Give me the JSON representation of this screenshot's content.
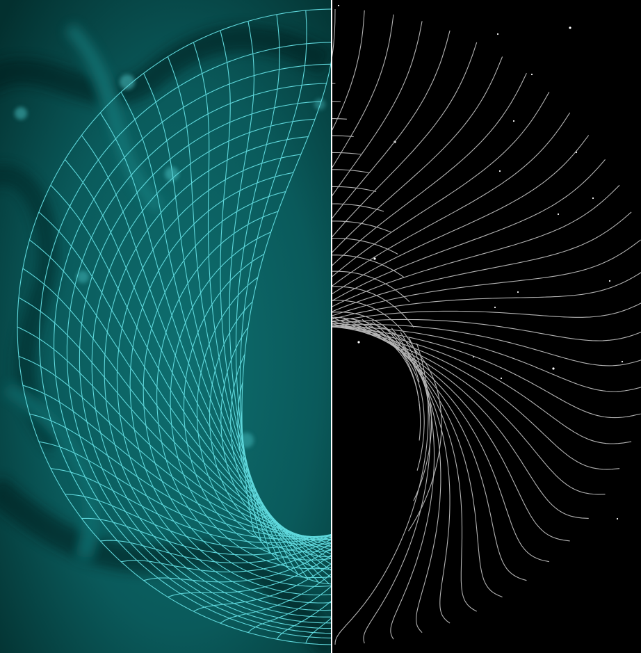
{
  "artwork": {
    "subject": "wormhole-grid-split-view",
    "left_panel": {
      "background": "#0b5f60",
      "background_dark": "#03302f",
      "grid_color": "#5fd8dc"
    },
    "right_panel": {
      "background": "#000000",
      "grid_color": "#b4b4b4",
      "star_color": "#ffffff"
    },
    "divider_color": "#ffffff"
  }
}
